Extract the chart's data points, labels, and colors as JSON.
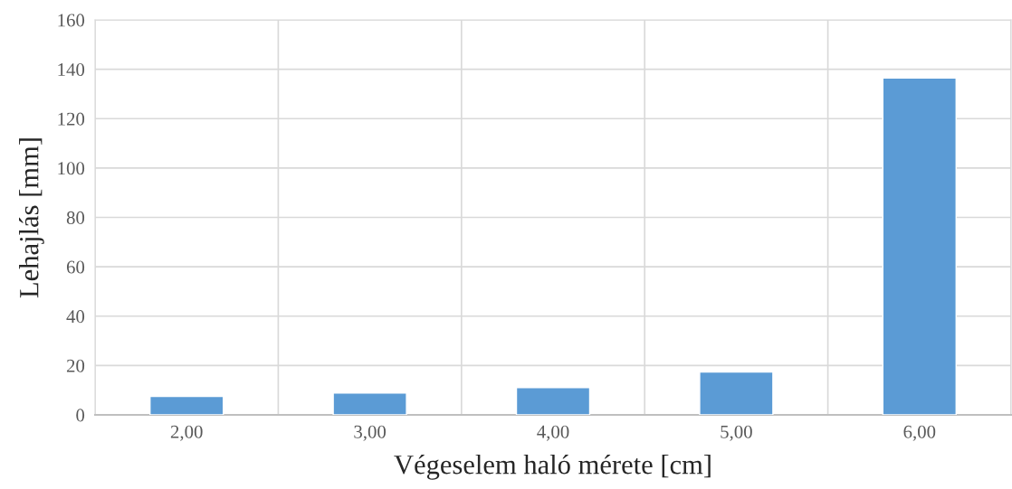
{
  "chart_data": {
    "type": "bar",
    "xlabel": "Végeselem haló mérete [cm]",
    "ylabel": "Lehajlás [mm]",
    "categories": [
      "2,00",
      "3,00",
      "4,00",
      "5,00",
      "6,00"
    ],
    "values": [
      7.5,
      8.9,
      11.1,
      17.4,
      136.5
    ],
    "color": "#5b9bd5",
    "ylim": [
      0,
      160
    ],
    "yticks": [
      0,
      20,
      40,
      60,
      80,
      100,
      120,
      140,
      160
    ],
    "grid": true
  }
}
